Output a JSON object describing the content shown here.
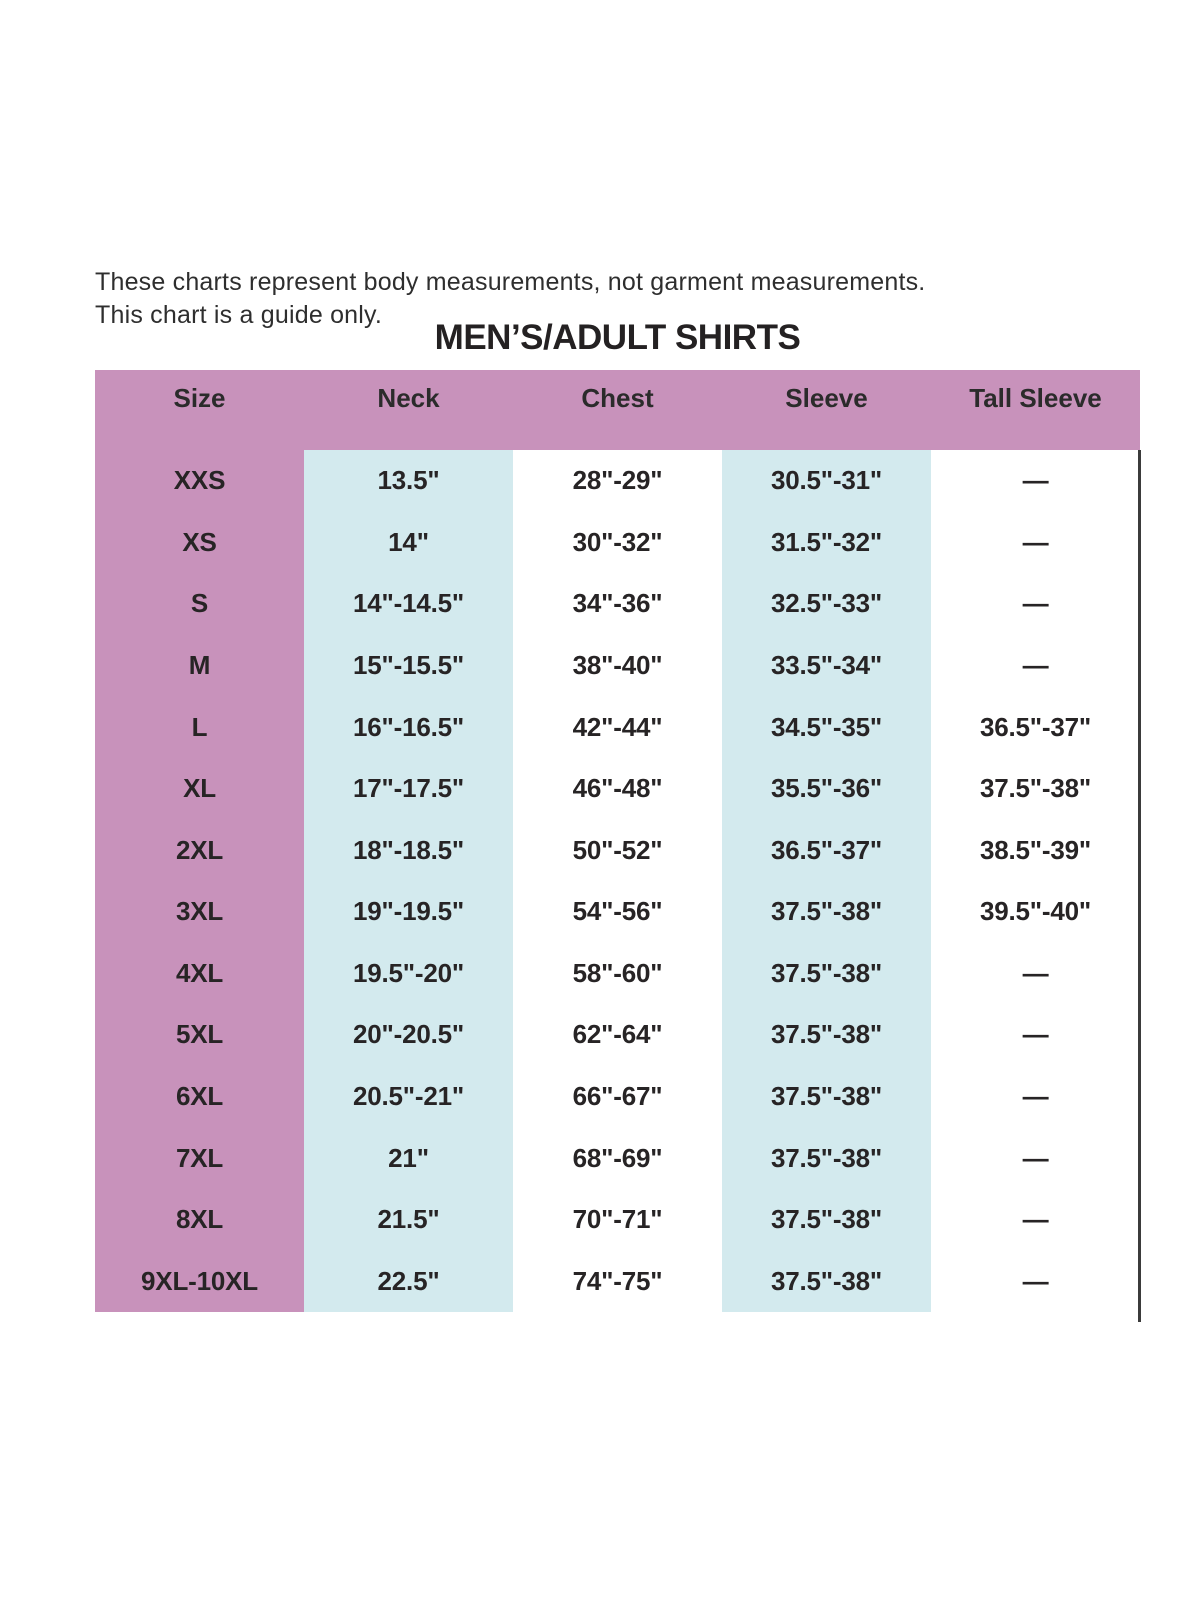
{
  "disclaimer": {
    "line1": "These charts represent body measurements, not garment measurements.",
    "line2": "This chart is a guide only."
  },
  "title": "MEN’S/ADULT SHIRTS",
  "chart_data": {
    "type": "table",
    "title": "MEN’S/ADULT SHIRTS",
    "columns": [
      "Size",
      "Neck",
      "Chest",
      "Sleeve",
      "Tall Sleeve"
    ],
    "rows": [
      [
        "XXS",
        "13.5\"",
        "28\"-29\"",
        "30.5\"-31\"",
        "—"
      ],
      [
        "XS",
        "14\"",
        "30\"-32\"",
        "31.5\"-32\"",
        "—"
      ],
      [
        "S",
        "14\"-14.5\"",
        "34\"-36\"",
        "32.5\"-33\"",
        "—"
      ],
      [
        "M",
        "15\"-15.5\"",
        "38\"-40\"",
        "33.5\"-34\"",
        "—"
      ],
      [
        "L",
        "16\"-16.5\"",
        "42\"-44\"",
        "34.5\"-35\"",
        "36.5\"-37\""
      ],
      [
        "XL",
        "17\"-17.5\"",
        "46\"-48\"",
        "35.5\"-36\"",
        "37.5\"-38\""
      ],
      [
        "2XL",
        "18\"-18.5\"",
        "50\"-52\"",
        "36.5\"-37\"",
        "38.5\"-39\""
      ],
      [
        "3XL",
        "19\"-19.5\"",
        "54\"-56\"",
        "37.5\"-38\"",
        "39.5\"-40\""
      ],
      [
        "4XL",
        "19.5\"-20\"",
        "58\"-60\"",
        "37.5\"-38\"",
        "—"
      ],
      [
        "5XL",
        "20\"-20.5\"",
        "62\"-64\"",
        "37.5\"-38\"",
        "—"
      ],
      [
        "6XL",
        "20.5\"-21\"",
        "66\"-67\"",
        "37.5\"-38\"",
        "—"
      ],
      [
        "7XL",
        "21\"",
        "68\"-69\"",
        "37.5\"-38\"",
        "—"
      ],
      [
        "8XL",
        "21.5\"",
        "70\"-71\"",
        "37.5\"-38\"",
        "—"
      ],
      [
        "9XL-10XL",
        "22.5\"",
        "74\"-75\"",
        "37.5\"-38\"",
        "—"
      ]
    ],
    "empty_value_symbol": "—",
    "layout": {
      "header_background": "pink",
      "striped_columns": [
        "Neck",
        "Sleeve"
      ],
      "grid": "off"
    }
  },
  "colors": {
    "header_pink": "#c892bb",
    "stripe_blue": "#d3eaee",
    "text_dark": "#2b2b2b",
    "border_dark": "#3b3b3b"
  }
}
